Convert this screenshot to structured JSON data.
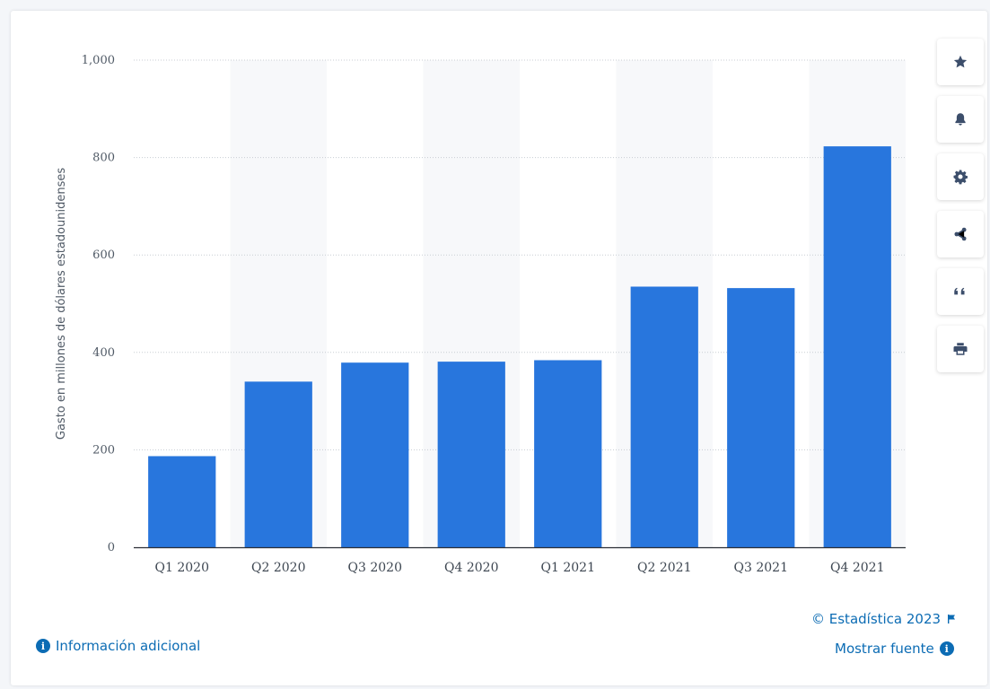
{
  "chart_data": {
    "type": "bar",
    "categories": [
      "Q1 2020",
      "Q2 2020",
      "Q3 2020",
      "Q4 2020",
      "Q1 2021",
      "Q2 2021",
      "Q3 2021",
      "Q4 2021"
    ],
    "values": [
      187,
      340,
      379,
      381,
      384,
      535,
      532,
      823
    ],
    "ylabel": "Gasto en millones de dólares estadounidenses",
    "xlabel": "",
    "ylim": [
      0,
      1000
    ],
    "yticks": [
      0,
      200,
      400,
      600,
      800,
      1000
    ],
    "ytick_labels": [
      "0",
      "200",
      "400",
      "600",
      "800",
      "1,000"
    ],
    "grid": true,
    "bar_color": "#2876dd",
    "alt_band_color": "#f7f8fa"
  },
  "toolbar": {
    "buttons": [
      {
        "name": "star-icon"
      },
      {
        "name": "bell-icon"
      },
      {
        "name": "gear-icon"
      },
      {
        "name": "share-icon"
      },
      {
        "name": "quote-icon"
      },
      {
        "name": "print-icon"
      }
    ]
  },
  "footer": {
    "copyright": "© Estadística 2023",
    "more_info": "Información adicional",
    "show_source": "Mostrar fuente"
  },
  "colors": {
    "link": "#0c6cb4",
    "icon": "#3c4e6b"
  }
}
